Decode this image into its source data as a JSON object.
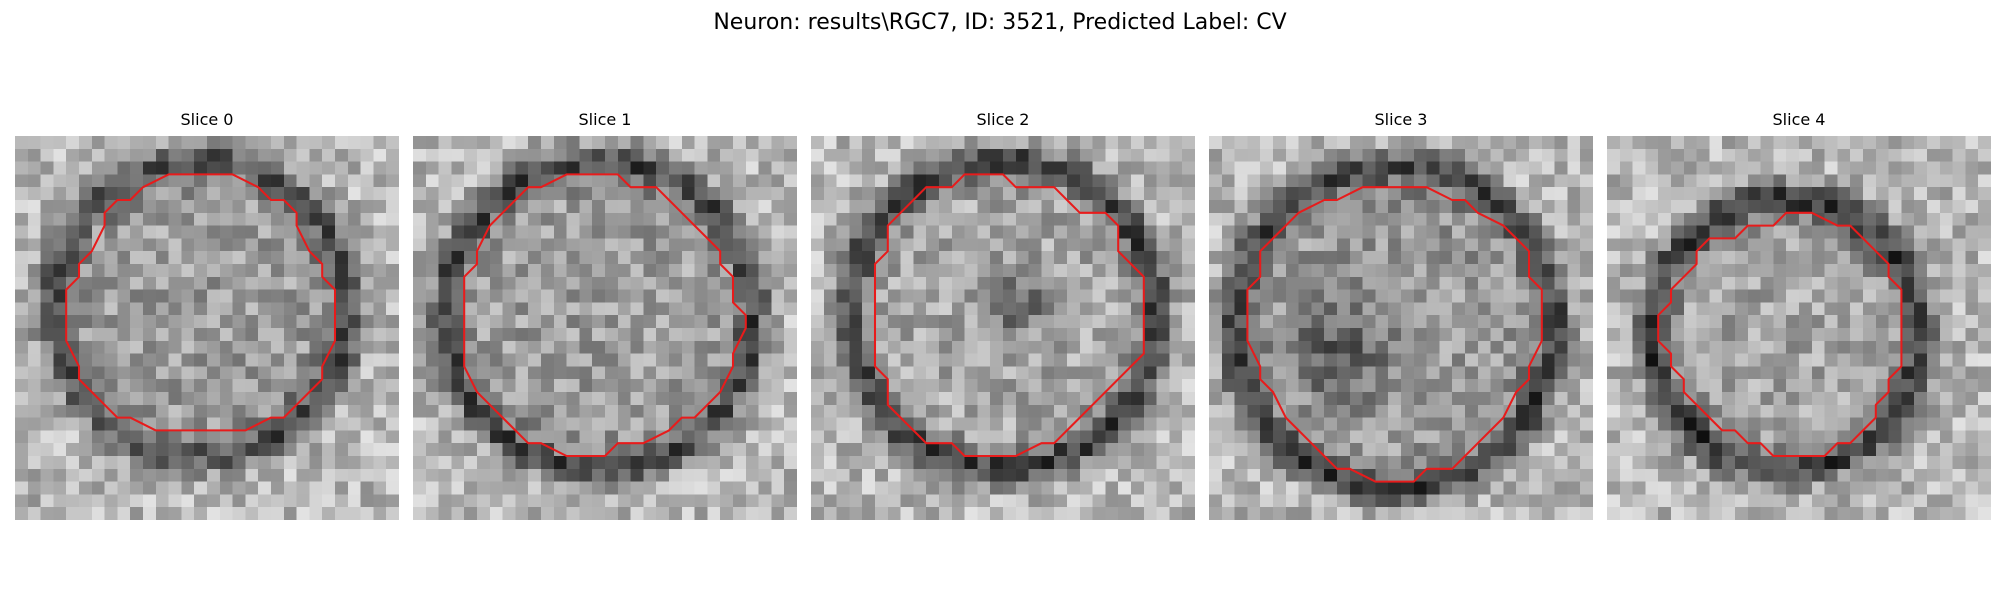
{
  "figure": {
    "title": "Neuron: results\\RGC7, ID: 3521, Predicted Label: CV"
  },
  "colors": {
    "contour": "#e81b1b",
    "background": "#ffffff"
  },
  "image_kind": "grayscale microscopy patch (30x30 pixels) with red segmentation contour",
  "slices": [
    {
      "label": "Slice 0",
      "index": 0
    },
    {
      "label": "Slice 1",
      "index": 1
    },
    {
      "label": "Slice 2",
      "index": 2
    },
    {
      "label": "Slice 3",
      "index": 3
    },
    {
      "label": "Slice 4",
      "index": 4
    }
  ]
}
